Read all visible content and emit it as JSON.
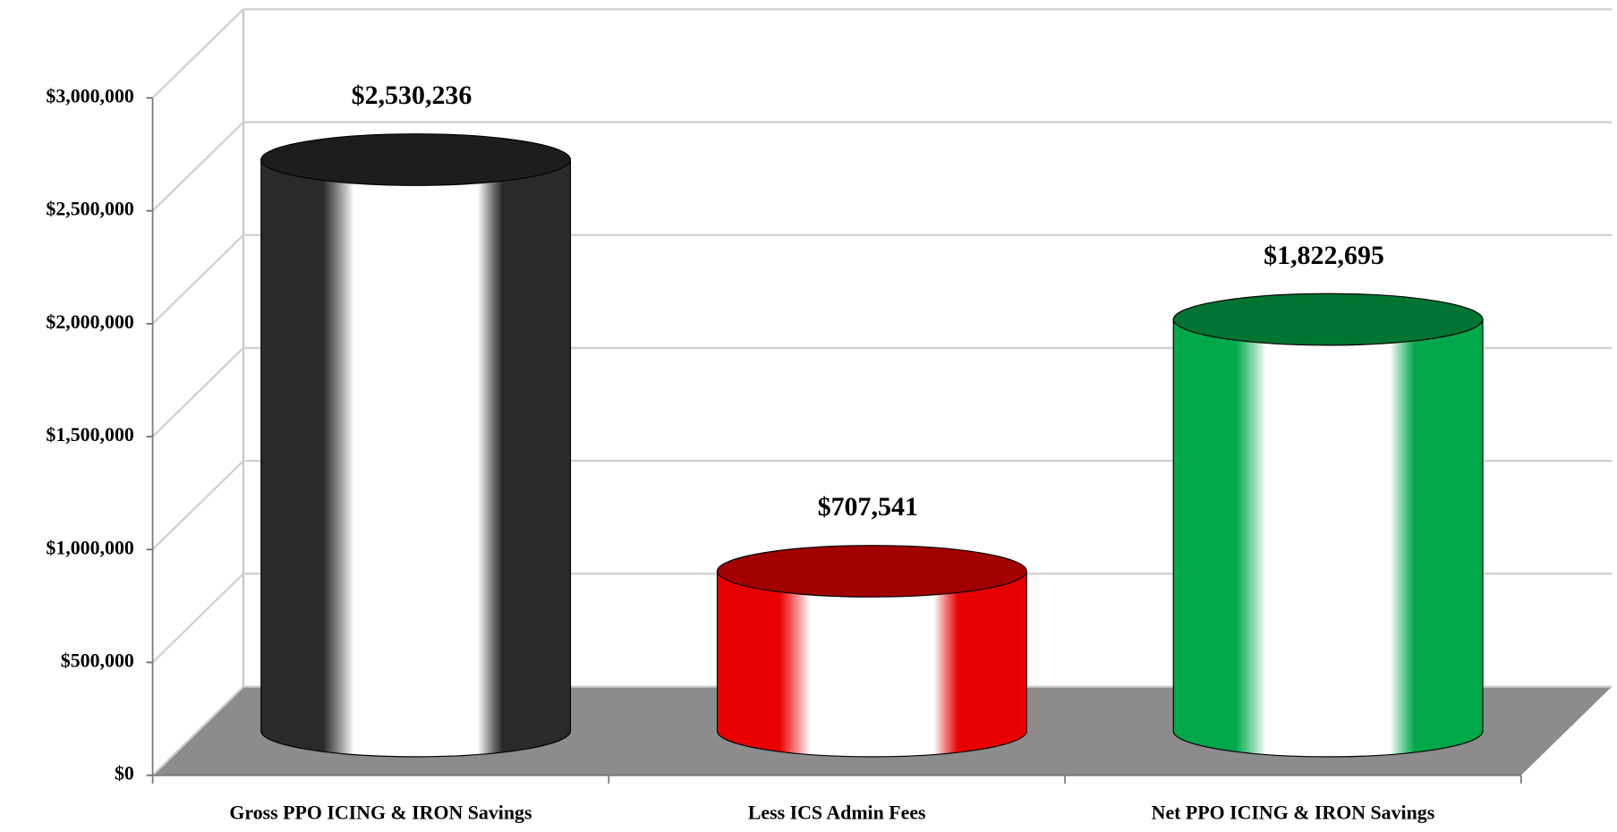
{
  "chart_data": {
    "type": "bar3d-cylinder",
    "categories": [
      "Gross PPO ICING & IRON Savings",
      "Less ICS Admin Fees",
      "Net PPO ICING & IRON Savings"
    ],
    "values": [
      2530236,
      707541,
      1822695
    ],
    "value_labels": [
      "$2,530,236",
      "$707,541",
      "$1,822,695"
    ],
    "colors": [
      "#2a2a2a",
      "#e80000",
      "#00a84a"
    ],
    "ylim": [
      0,
      3000000
    ],
    "yticks": [
      {
        "value": 0,
        "label": "$0"
      },
      {
        "value": 500000,
        "label": "$500,000"
      },
      {
        "value": 1000000,
        "label": "$1,000,000"
      },
      {
        "value": 1500000,
        "label": "$1,500,000"
      },
      {
        "value": 2000000,
        "label": "$2,000,000"
      },
      {
        "value": 2500000,
        "label": "$2,500,000"
      },
      {
        "value": 3000000,
        "label": "$3,000,000"
      }
    ],
    "grid": true
  }
}
